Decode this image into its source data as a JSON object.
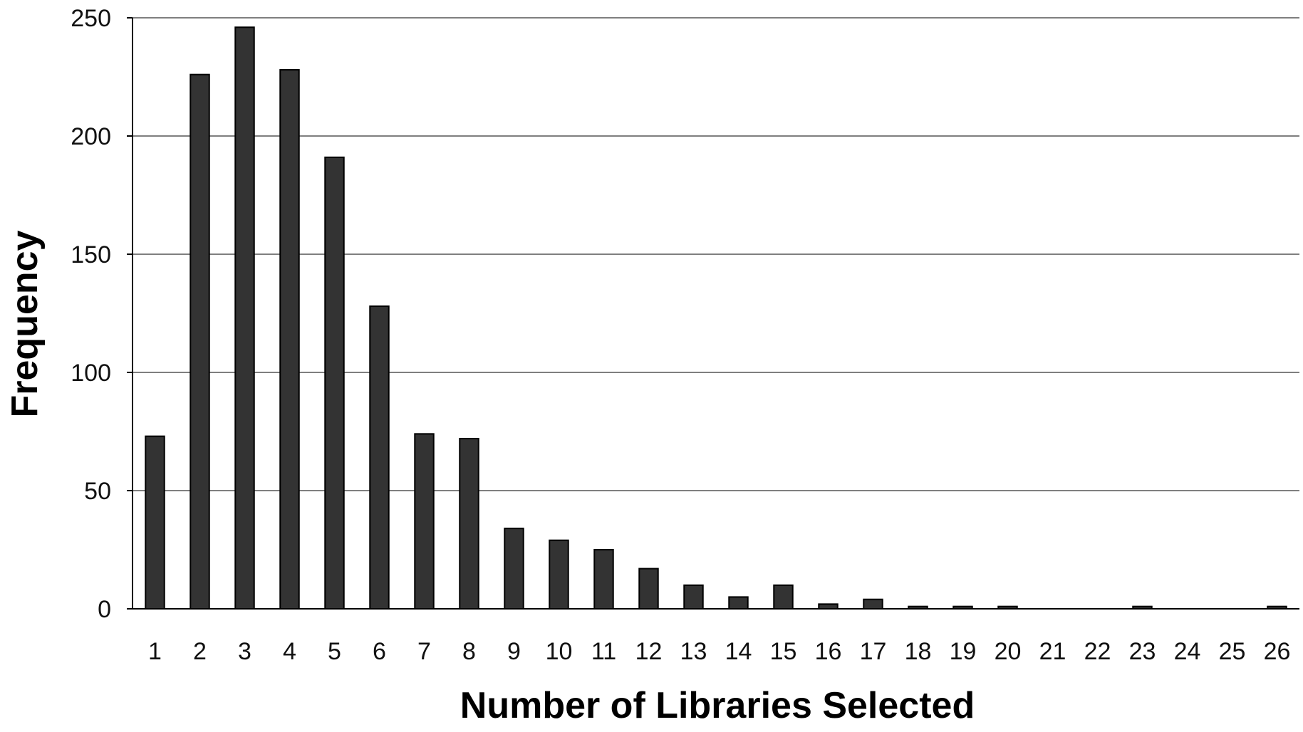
{
  "chart_data": {
    "type": "bar",
    "title": "",
    "xlabel": "Number of Libraries Selected",
    "ylabel": "Frequency",
    "categories": [
      "1",
      "2",
      "3",
      "4",
      "5",
      "6",
      "7",
      "8",
      "9",
      "10",
      "11",
      "12",
      "13",
      "14",
      "15",
      "16",
      "17",
      "18",
      "19",
      "20",
      "21",
      "22",
      "23",
      "24",
      "25",
      "26"
    ],
    "values": [
      73,
      226,
      246,
      228,
      191,
      128,
      74,
      72,
      34,
      29,
      25,
      17,
      10,
      5,
      10,
      2,
      4,
      1,
      1,
      1,
      0,
      0,
      1,
      0,
      0,
      1
    ],
    "ylim": [
      0,
      250
    ],
    "yticks": [
      "0",
      "50",
      "100",
      "150",
      "200",
      "250"
    ],
    "grid": "horizontal",
    "legend": "none",
    "bar_color": "#333333"
  }
}
